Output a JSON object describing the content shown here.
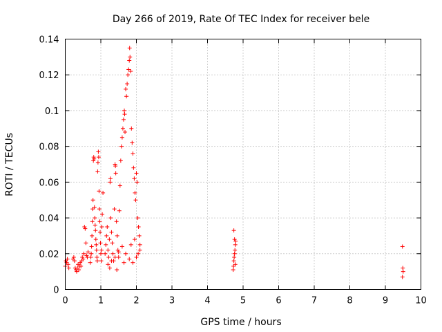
{
  "chart_data": {
    "type": "scatter",
    "title": "Day 266 of 2019, Rate Of TEC Index for receiver bele",
    "xlabel": "GPS time / hours",
    "ylabel": "ROTI / TECUs",
    "xlim": [
      0,
      10
    ],
    "ylim": [
      0,
      0.14
    ],
    "grid": true,
    "marker": "+",
    "color": "#ff0000",
    "x_ticks": [
      "0",
      "1",
      "2",
      "3",
      "4",
      "5",
      "6",
      "7",
      "8",
      "9",
      "10"
    ],
    "y_ticks": [
      "0",
      "0.02",
      "0.04",
      "0.06",
      "0.08",
      "0.1",
      "0.12",
      "0.14"
    ],
    "series": [
      {
        "name": "ROTI",
        "points": [
          [
            0.0,
            0.013
          ],
          [
            0.02,
            0.016
          ],
          [
            0.04,
            0.015
          ],
          [
            0.06,
            0.017
          ],
          [
            0.08,
            0.014
          ],
          [
            0.1,
            0.012
          ],
          [
            0.22,
            0.017
          ],
          [
            0.24,
            0.018
          ],
          [
            0.26,
            0.016
          ],
          [
            0.28,
            0.012
          ],
          [
            0.3,
            0.011
          ],
          [
            0.32,
            0.01
          ],
          [
            0.34,
            0.012
          ],
          [
            0.36,
            0.014
          ],
          [
            0.38,
            0.011
          ],
          [
            0.4,
            0.013
          ],
          [
            0.42,
            0.015
          ],
          [
            0.44,
            0.013
          ],
          [
            0.46,
            0.016
          ],
          [
            0.48,
            0.018
          ],
          [
            0.5,
            0.017
          ],
          [
            0.52,
            0.02
          ],
          [
            0.54,
            0.035
          ],
          [
            0.56,
            0.034
          ],
          [
            0.58,
            0.026
          ],
          [
            0.6,
            0.019
          ],
          [
            0.62,
            0.018
          ],
          [
            0.64,
            0.021
          ],
          [
            0.7,
            0.015
          ],
          [
            0.72,
            0.018
          ],
          [
            0.73,
            0.02
          ],
          [
            0.74,
            0.024
          ],
          [
            0.75,
            0.03
          ],
          [
            0.76,
            0.038
          ],
          [
            0.77,
            0.045
          ],
          [
            0.78,
            0.05
          ],
          [
            0.79,
            0.072
          ],
          [
            0.8,
            0.074
          ],
          [
            0.81,
            0.073
          ],
          [
            0.82,
            0.046
          ],
          [
            0.83,
            0.04
          ],
          [
            0.84,
            0.036
          ],
          [
            0.85,
            0.033
          ],
          [
            0.86,
            0.028
          ],
          [
            0.87,
            0.025
          ],
          [
            0.88,
            0.022
          ],
          [
            0.89,
            0.018
          ],
          [
            0.9,
            0.016
          ],
          [
            0.91,
            0.066
          ],
          [
            0.92,
            0.071
          ],
          [
            0.93,
            0.077
          ],
          [
            0.94,
            0.074
          ],
          [
            0.95,
            0.055
          ],
          [
            0.96,
            0.045
          ],
          [
            0.97,
            0.038
          ],
          [
            0.98,
            0.032
          ],
          [
            0.99,
            0.026
          ],
          [
            1.0,
            0.02
          ],
          [
            1.01,
            0.016
          ],
          [
            1.02,
            0.022
          ],
          [
            1.03,
            0.035
          ],
          [
            1.04,
            0.042
          ],
          [
            1.06,
            0.054
          ],
          [
            1.12,
            0.02
          ],
          [
            1.14,
            0.025
          ],
          [
            1.16,
            0.03
          ],
          [
            1.18,
            0.035
          ],
          [
            1.2,
            0.022
          ],
          [
            1.22,
            0.018
          ],
          [
            1.24,
            0.028
          ],
          [
            1.26,
            0.06
          ],
          [
            1.27,
            0.062
          ],
          [
            1.28,
            0.04
          ],
          [
            1.3,
            0.032
          ],
          [
            1.32,
            0.026
          ],
          [
            1.34,
            0.02
          ],
          [
            1.36,
            0.016
          ],
          [
            1.38,
            0.045
          ],
          [
            1.4,
            0.07
          ],
          [
            1.41,
            0.069
          ],
          [
            1.42,
            0.065
          ],
          [
            1.44,
            0.038
          ],
          [
            1.46,
            0.03
          ],
          [
            1.48,
            0.022
          ],
          [
            1.5,
            0.018
          ],
          [
            1.52,
            0.044
          ],
          [
            1.54,
            0.058
          ],
          [
            1.56,
            0.072
          ],
          [
            1.58,
            0.08
          ],
          [
            1.6,
            0.085
          ],
          [
            1.62,
            0.09
          ],
          [
            1.64,
            0.095
          ],
          [
            1.66,
            0.1
          ],
          [
            1.67,
            0.098
          ],
          [
            1.68,
            0.088
          ],
          [
            1.7,
            0.112
          ],
          [
            1.72,
            0.108
          ],
          [
            1.74,
            0.115
          ],
          [
            1.76,
            0.12
          ],
          [
            1.78,
            0.123
          ],
          [
            1.8,
            0.128
          ],
          [
            1.81,
            0.135
          ],
          [
            1.82,
            0.13
          ],
          [
            1.84,
            0.122
          ],
          [
            1.86,
            0.09
          ],
          [
            1.88,
            0.082
          ],
          [
            1.9,
            0.076
          ],
          [
            1.92,
            0.068
          ],
          [
            1.94,
            0.062
          ],
          [
            1.96,
            0.054
          ],
          [
            1.98,
            0.05
          ],
          [
            2.0,
            0.065
          ],
          [
            2.02,
            0.06
          ],
          [
            2.04,
            0.04
          ],
          [
            2.06,
            0.035
          ],
          [
            2.08,
            0.03
          ],
          [
            2.1,
            0.025
          ],
          [
            1.2,
            0.014
          ],
          [
            1.3,
            0.016
          ],
          [
            1.4,
            0.018
          ],
          [
            1.5,
            0.021
          ],
          [
            1.6,
            0.024
          ],
          [
            1.7,
            0.02
          ],
          [
            1.8,
            0.017
          ],
          [
            1.9,
            0.015
          ],
          [
            2.0,
            0.018
          ],
          [
            2.1,
            0.022
          ],
          [
            1.25,
            0.012
          ],
          [
            1.45,
            0.011
          ],
          [
            1.65,
            0.015
          ],
          [
            1.85,
            0.025
          ],
          [
            1.95,
            0.028
          ],
          [
            2.05,
            0.02
          ],
          [
            4.72,
            0.011
          ],
          [
            4.73,
            0.013
          ],
          [
            4.74,
            0.016
          ],
          [
            4.75,
            0.018
          ],
          [
            4.76,
            0.02
          ],
          [
            4.77,
            0.022
          ],
          [
            4.78,
            0.025
          ],
          [
            4.79,
            0.027
          ],
          [
            4.74,
            0.033
          ],
          [
            4.76,
            0.028
          ],
          [
            4.78,
            0.014
          ],
          [
            9.48,
            0.024
          ],
          [
            9.49,
            0.012
          ],
          [
            9.5,
            0.01
          ],
          [
            9.48,
            0.007
          ]
        ]
      }
    ]
  }
}
